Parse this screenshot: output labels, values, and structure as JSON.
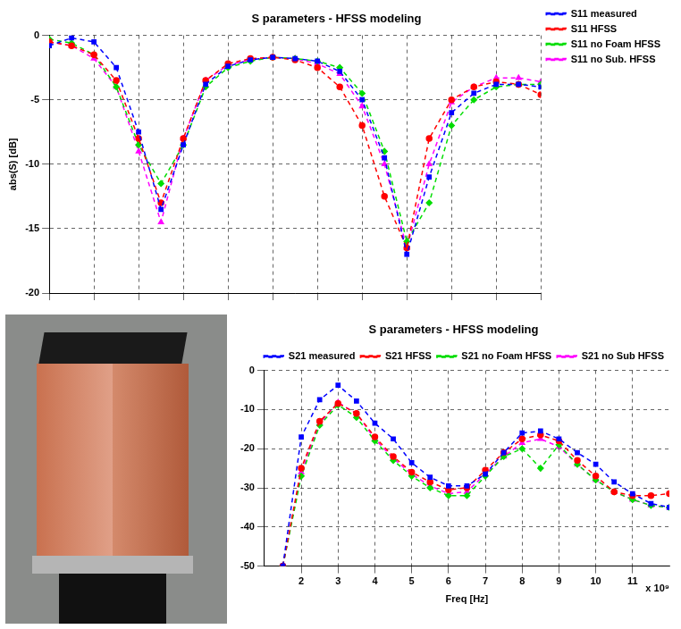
{
  "chart_data": [
    {
      "type": "line",
      "title": "S parameters - HFSS modeling",
      "y_label": "abs(S) [dB]",
      "x": [
        1,
        1.5,
        2,
        2.5,
        3,
        3.5,
        4,
        4.5,
        5,
        5.5,
        6,
        6.5,
        7,
        7.5,
        8,
        8.5,
        9,
        9.5,
        10,
        10.5,
        11,
        11.5,
        12
      ],
      "xlim": [
        1,
        12
      ],
      "xticks": [
        1,
        2,
        3,
        4,
        5,
        6,
        7,
        8,
        9,
        10,
        11,
        12
      ],
      "ylim": [
        -20,
        0
      ],
      "yticks": [
        -20,
        -15,
        -10,
        -5,
        0
      ],
      "grid": true,
      "legend": "right",
      "tick_labels": "y",
      "series": [
        {
          "name": "S11 measured",
          "color": "#0000ff",
          "marker": "square",
          "line_style": "dashed",
          "values": [
            -0.8,
            -0.2,
            -0.5,
            -2.5,
            -7.5,
            -13.5,
            -8.5,
            -3.8,
            -2.4,
            -1.9,
            -1.7,
            -1.8,
            -2,
            -2.8,
            -5,
            -9.5,
            -17,
            -11,
            -6,
            -4.5,
            -3.8,
            -3.8,
            -4
          ]
        },
        {
          "name": "S11 HFSS",
          "color": "#ff0000",
          "marker": "circle",
          "line_style": "dashed",
          "values": [
            -0.5,
            -0.8,
            -1.5,
            -3.5,
            -8,
            -13,
            -8,
            -3.5,
            -2.2,
            -1.8,
            -1.7,
            -1.9,
            -2.5,
            -4,
            -7,
            -12.5,
            -16.5,
            -8,
            -5,
            -4,
            -3.6,
            -3.8,
            -4.6
          ]
        },
        {
          "name": "S11 no Foam HFSS",
          "color": "#00dd00",
          "marker": "diamond",
          "line_style": "dashed",
          "values": [
            -0.3,
            -0.6,
            -1.5,
            -4,
            -8.5,
            -11.5,
            -8.5,
            -4,
            -2.5,
            -2,
            -1.7,
            -1.8,
            -2,
            -2.5,
            -4.5,
            -9,
            -16,
            -13,
            -7,
            -5,
            -4,
            -3.8,
            -3.8
          ]
        },
        {
          "name": "S11 no Sub. HFSS",
          "color": "#ff00ff",
          "marker": "triangle",
          "line_style": "dashed",
          "values": [
            -0.5,
            -0.8,
            -1.8,
            -4,
            -9,
            -14.5,
            -8,
            -3.5,
            -2.3,
            -1.9,
            -1.7,
            -1.8,
            -2.2,
            -3,
            -5.5,
            -10,
            -16.5,
            -10,
            -5.2,
            -4,
            -3.3,
            -3.3,
            -3.6
          ]
        }
      ]
    },
    {
      "type": "line",
      "title": "S parameters - HFSS modeling",
      "x_label": "Freq [Hz]",
      "annotation": "x 10⁹",
      "x": [
        1.5,
        2,
        2.5,
        3,
        3.5,
        4,
        4.5,
        5,
        5.5,
        6,
        6.5,
        7,
        7.5,
        8,
        8.5,
        9,
        9.5,
        10,
        10.5,
        11,
        11.5,
        12
      ],
      "xlim": [
        1,
        12
      ],
      "xticks": [
        2,
        3,
        4,
        5,
        6,
        7,
        8,
        9,
        10,
        11
      ],
      "ylim": [
        -50,
        0
      ],
      "yticks": [
        -50,
        -40,
        -30,
        -20,
        -10,
        0
      ],
      "grid": true,
      "legend": "top",
      "series": [
        {
          "name": "S21 measured",
          "color": "#0000ff",
          "marker": "square",
          "line_style": "dashed",
          "values": [
            -50,
            -17,
            -7.5,
            -3.8,
            -7.8,
            -13.5,
            -17.5,
            -23.6,
            -27.3,
            -29.5,
            -29.5,
            -26.5,
            -21,
            -16,
            -15.5,
            -17.5,
            -21,
            -24,
            -28.5,
            -31.5,
            -34,
            -35
          ]
        },
        {
          "name": "S21 HFSS",
          "color": "#ff0000",
          "marker": "circle",
          "line_style": "dashed",
          "values": [
            -50,
            -25,
            -13,
            -8.4,
            -11,
            -17,
            -22,
            -26,
            -28.5,
            -30.5,
            -30,
            -25.5,
            -21,
            -17.5,
            -16.5,
            -18,
            -23,
            -27,
            -31,
            -32,
            -32,
            -31.5
          ]
        },
        {
          "name": "S21 no Foam HFSS",
          "color": "#00dd00",
          "marker": "diamond",
          "line_style": "dashed",
          "values": [
            -50,
            -27,
            -14,
            -8.8,
            -12,
            -18,
            -23,
            -27,
            -30,
            -32,
            -32,
            -27,
            -22,
            -20,
            -25,
            -19,
            -24,
            -28,
            -31,
            -33,
            -34.5,
            -35
          ]
        },
        {
          "name": "S21 no Sub HFSS",
          "color": "#ff00ff",
          "marker": "triangle",
          "line_style": "dashed",
          "values": [
            -50,
            -26,
            -13.5,
            -8.2,
            -11,
            -17.5,
            -22.5,
            -26.5,
            -29.5,
            -31.5,
            -31,
            -26.5,
            -22,
            -18.5,
            -17.5,
            -19.5,
            -24,
            -28,
            -31,
            -33,
            -34.5,
            -35
          ]
        }
      ]
    }
  ]
}
